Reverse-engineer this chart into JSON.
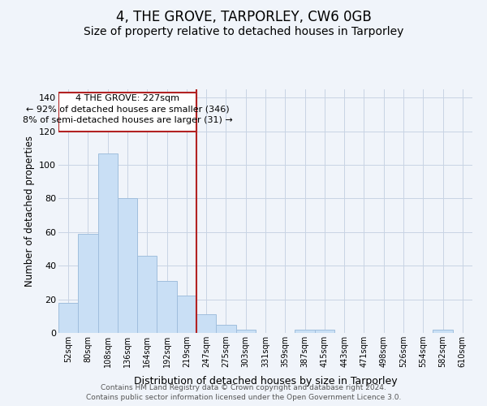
{
  "title": "4, THE GROVE, TARPORLEY, CW6 0GB",
  "subtitle": "Size of property relative to detached houses in Tarporley",
  "xlabel": "Distribution of detached houses by size in Tarporley",
  "ylabel": "Number of detached properties",
  "categories": [
    "52sqm",
    "80sqm",
    "108sqm",
    "136sqm",
    "164sqm",
    "192sqm",
    "219sqm",
    "247sqm",
    "275sqm",
    "303sqm",
    "331sqm",
    "359sqm",
    "387sqm",
    "415sqm",
    "443sqm",
    "471sqm",
    "498sqm",
    "526sqm",
    "554sqm",
    "582sqm",
    "610sqm"
  ],
  "values": [
    18,
    59,
    107,
    80,
    46,
    31,
    22,
    11,
    5,
    2,
    0,
    0,
    2,
    2,
    0,
    0,
    0,
    0,
    0,
    2,
    0
  ],
  "bar_color": "#c9dff5",
  "bar_edge_color": "#a0bedd",
  "grid_color": "#c8d4e4",
  "background_color": "#f0f4fa",
  "plot_bg_color": "#f0f4fa",
  "annotation_box_color": "#ffffff",
  "annotation_border_color": "#b22222",
  "vline_color": "#b22222",
  "vline_x_index": 6,
  "annotation_text_line1": "4 THE GROVE: 227sqm",
  "annotation_text_line2": "← 92% of detached houses are smaller (346)",
  "annotation_text_line3": "8% of semi-detached houses are larger (31) →",
  "ylim": [
    0,
    145
  ],
  "yticks": [
    0,
    20,
    40,
    60,
    80,
    100,
    120,
    140
  ],
  "title_fontsize": 12,
  "subtitle_fontsize": 10,
  "footer_line1": "Contains HM Land Registry data © Crown copyright and database right 2024.",
  "footer_line2": "Contains public sector information licensed under the Open Government Licence 3.0."
}
